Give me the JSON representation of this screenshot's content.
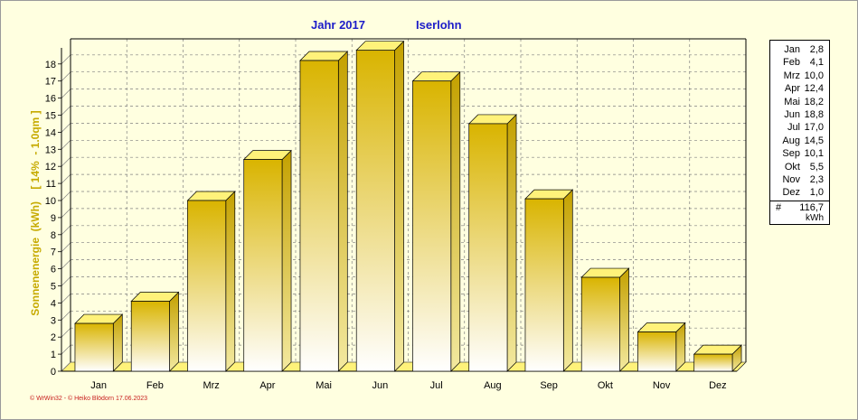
{
  "title": {
    "year": "Jahr  2017",
    "location": "Iserlohn"
  },
  "chart_data": {
    "type": "bar",
    "categories": [
      "Jan",
      "Feb",
      "Mrz",
      "Apr",
      "Mai",
      "Jun",
      "Jul",
      "Aug",
      "Sep",
      "Okt",
      "Nov",
      "Dez"
    ],
    "values": [
      2.8,
      4.1,
      10.0,
      12.4,
      18.2,
      18.8,
      17.0,
      14.5,
      10.1,
      5.5,
      2.3,
      1.0
    ],
    "ylabel": "Sonnenenergie  (kWh)    [ 14%  - 1.0qm ]",
    "ylim": [
      0,
      19
    ],
    "yticks": [
      0,
      1,
      2,
      3,
      4,
      5,
      6,
      7,
      8,
      9,
      10,
      11,
      12,
      13,
      14,
      15,
      16,
      17,
      18
    ],
    "grid": true,
    "legend_position": "right",
    "colors": {
      "bar_top": "#d9b400",
      "bar_bottom": "#ffffff",
      "side": "#b89900",
      "cap": "#fff27a",
      "grid": "#808080"
    }
  },
  "legend": {
    "rows": [
      {
        "month": "Jan",
        "value": "2,8"
      },
      {
        "month": "Feb",
        "value": "4,1"
      },
      {
        "month": "Mrz",
        "value": "10,0"
      },
      {
        "month": "Apr",
        "value": "12,4"
      },
      {
        "month": "Mai",
        "value": "18,2"
      },
      {
        "month": "Jun",
        "value": "18,8"
      },
      {
        "month": "Jul",
        "value": "17,0"
      },
      {
        "month": "Aug",
        "value": "14,5"
      },
      {
        "month": "Sep",
        "value": "10,1"
      },
      {
        "month": "Okt",
        "value": "5,5"
      },
      {
        "month": "Nov",
        "value": "2,3"
      },
      {
        "month": "Dez",
        "value": "1,0"
      }
    ],
    "total_symbol": "#",
    "total": "116,7",
    "unit": "kWh"
  },
  "footer": "© WrWin32  -  © Heiko Blödorn  17.06.2023"
}
